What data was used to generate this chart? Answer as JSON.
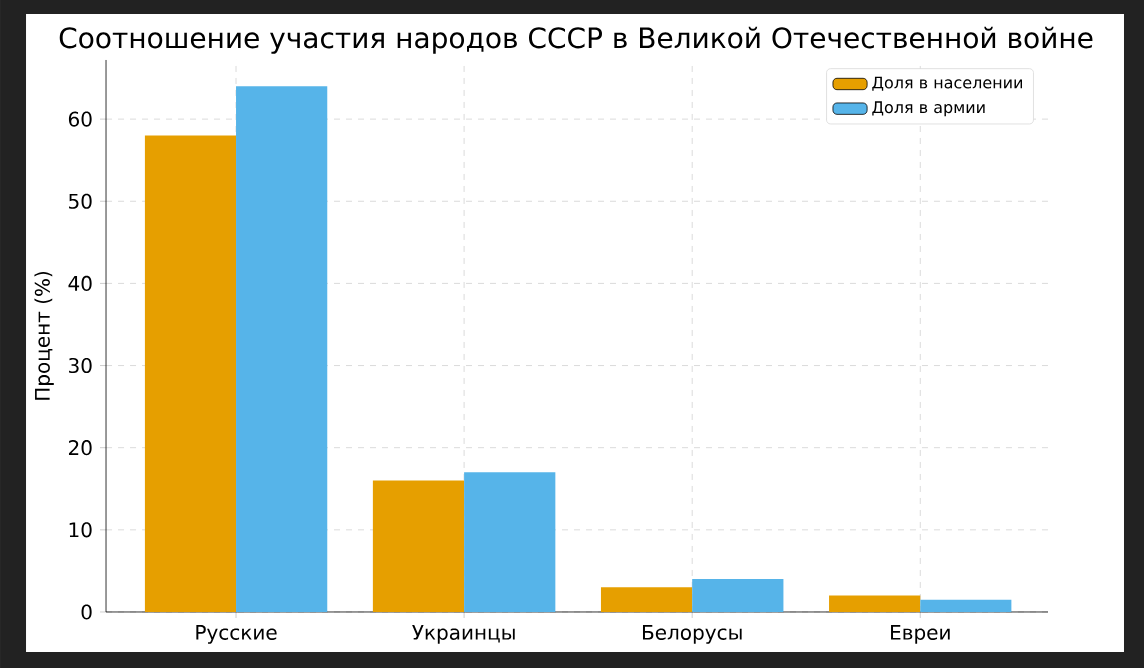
{
  "chart_data": {
    "type": "bar",
    "title": "Соотношение участия народов СССР в Великой Отечественной войне",
    "ylabel": "Процент (%)",
    "categories": [
      "Русские",
      "Украинцы",
      "Белорусы",
      "Евреи"
    ],
    "series": [
      {
        "name": "Доля в населении",
        "color": "#e69f00",
        "values": [
          58,
          16,
          3,
          2
        ]
      },
      {
        "name": "Доля в армии",
        "color": "#56b4e9",
        "values": [
          64,
          17,
          4,
          1.5
        ]
      }
    ],
    "ylim": [
      0,
      67.2
    ],
    "yticks": [
      0,
      10,
      20,
      30,
      40,
      50,
      60
    ],
    "grid": true,
    "legend": "top right"
  }
}
